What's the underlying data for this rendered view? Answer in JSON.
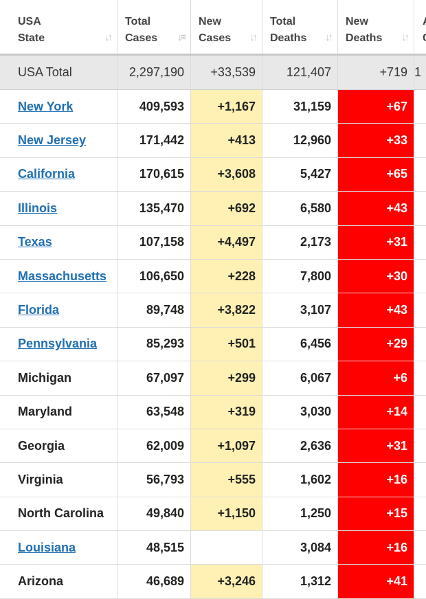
{
  "headers": [
    {
      "line1": "USA",
      "line2": "State"
    },
    {
      "line1": "Total",
      "line2": "Cases"
    },
    {
      "line1": "New",
      "line2": "Cases"
    },
    {
      "line1": "Total",
      "line2": "Deaths"
    },
    {
      "line1": "New",
      "line2": "Deaths"
    },
    {
      "line1": "A",
      "line2": "C"
    }
  ],
  "sort_icons": [
    "↓↑",
    "↓≡",
    "↓↑",
    "↓↑",
    "↓↑"
  ],
  "total": {
    "state": "USA Total",
    "total_cases": "2,297,190",
    "new_cases": "+33,539",
    "total_deaths": "121,407",
    "new_deaths": "+719",
    "extra": "1"
  },
  "rows": [
    {
      "state": "New York",
      "link": true,
      "total_cases": "409,593",
      "new_cases": "+1,167",
      "total_deaths": "31,159",
      "new_deaths": "+67"
    },
    {
      "state": "New Jersey",
      "link": true,
      "total_cases": "171,442",
      "new_cases": "+413",
      "total_deaths": "12,960",
      "new_deaths": "+33"
    },
    {
      "state": "California",
      "link": true,
      "total_cases": "170,615",
      "new_cases": "+3,608",
      "total_deaths": "5,427",
      "new_deaths": "+65"
    },
    {
      "state": "Illinois",
      "link": true,
      "total_cases": "135,470",
      "new_cases": "+692",
      "total_deaths": "6,580",
      "new_deaths": "+43"
    },
    {
      "state": "Texas",
      "link": true,
      "total_cases": "107,158",
      "new_cases": "+4,497",
      "total_deaths": "2,173",
      "new_deaths": "+31"
    },
    {
      "state": "Massachusetts",
      "link": true,
      "total_cases": "106,650",
      "new_cases": "+228",
      "total_deaths": "7,800",
      "new_deaths": "+30"
    },
    {
      "state": "Florida",
      "link": true,
      "total_cases": "89,748",
      "new_cases": "+3,822",
      "total_deaths": "3,107",
      "new_deaths": "+43"
    },
    {
      "state": "Pennsylvania",
      "link": true,
      "total_cases": "85,293",
      "new_cases": "+501",
      "total_deaths": "6,456",
      "new_deaths": "+29"
    },
    {
      "state": "Michigan",
      "link": false,
      "total_cases": "67,097",
      "new_cases": "+299",
      "total_deaths": "6,067",
      "new_deaths": "+6"
    },
    {
      "state": "Maryland",
      "link": false,
      "total_cases": "63,548",
      "new_cases": "+319",
      "total_deaths": "3,030",
      "new_deaths": "+14"
    },
    {
      "state": "Georgia",
      "link": false,
      "total_cases": "62,009",
      "new_cases": "+1,097",
      "total_deaths": "2,636",
      "new_deaths": "+31"
    },
    {
      "state": "Virginia",
      "link": false,
      "total_cases": "56,793",
      "new_cases": "+555",
      "total_deaths": "1,602",
      "new_deaths": "+16"
    },
    {
      "state": "North Carolina",
      "link": false,
      "total_cases": "49,840",
      "new_cases": "+1,150",
      "total_deaths": "1,250",
      "new_deaths": "+15"
    },
    {
      "state": "Louisiana",
      "link": true,
      "total_cases": "48,515",
      "new_cases": "",
      "total_deaths": "3,084",
      "new_deaths": "+16"
    },
    {
      "state": "Arizona",
      "link": false,
      "total_cases": "46,689",
      "new_cases": "+3,246",
      "total_deaths": "1,312",
      "new_deaths": "+41"
    }
  ],
  "colors": {
    "new_cases_bg": "#fff0b3",
    "new_deaths_bg": "#ff0000",
    "link": "#1f6fb2",
    "total_row_bg": "#e8e8e8"
  }
}
